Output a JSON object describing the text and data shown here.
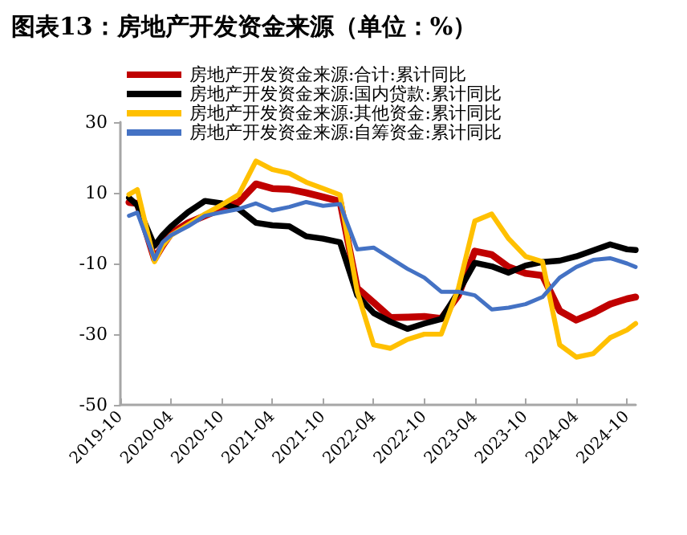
{
  "chart_data": {
    "type": "line",
    "title": "图表13：房地产开发资金来源（单位：%）",
    "x": [
      "2019-11",
      "2019-12",
      "2020-02",
      "2020-03",
      "2020-04",
      "2020-06",
      "2020-08",
      "2020-10",
      "2020-12",
      "2021-02",
      "2021-04",
      "2021-06",
      "2021-08",
      "2021-10",
      "2021-12",
      "2022-02",
      "2022-04",
      "2022-06",
      "2022-08",
      "2022-10",
      "2022-12",
      "2023-02",
      "2023-04",
      "2023-06",
      "2023-08",
      "2023-10",
      "2023-12",
      "2024-02",
      "2024-04",
      "2024-06",
      "2024-08",
      "2024-10",
      "2024-11"
    ],
    "series": [
      {
        "name": "房地产开发资金来源:合计:累计同比",
        "color": "#c00000",
        "values": [
          7.3,
          7.0,
          -8.8,
          -5,
          -1.5,
          1.5,
          3.5,
          5.5,
          7.4,
          12.5,
          11.2,
          11,
          10,
          8.8,
          7.6,
          -17,
          -21,
          -25.3,
          -25.2,
          -25,
          -25.6,
          -19,
          -6.5,
          -7.5,
          -11,
          -12.8,
          -13.4,
          -23.4,
          -26,
          -24,
          -21.5,
          -20,
          -19.5
        ]
      },
      {
        "name": "房地产开发资金来源:国内贷款:累计同比",
        "color": "#000000",
        "values": [
          8.6,
          6.5,
          -5,
          -2,
          0.5,
          4.5,
          7.7,
          7,
          5.4,
          1.5,
          0.8,
          0.5,
          -2.3,
          -3,
          -4,
          -19,
          -24,
          -26.5,
          -28.5,
          -27,
          -25.7,
          -18,
          -9.8,
          -10.8,
          -12.6,
          -10.6,
          -9.6,
          -9.2,
          -8,
          -6.3,
          -4.6,
          -6,
          -6.2
        ]
      },
      {
        "name": "房地产开发资金来源:其他资金:累计同比",
        "color": "#ffc000",
        "values": [
          9.5,
          10.9,
          -9.5,
          -5,
          -2,
          1,
          4,
          6.6,
          9.5,
          19,
          16.6,
          15.5,
          13,
          11.2,
          9.4,
          -18,
          -33,
          -34,
          -31.5,
          -30,
          -30,
          -17,
          2,
          4,
          -3,
          -8,
          -9.5,
          -33,
          -36.5,
          -35.5,
          -31,
          -28.8,
          -27
        ]
      },
      {
        "name": "房地产开发资金来源:自筹资金:累计同比",
        "color": "#4472c4",
        "values": [
          3.5,
          4.4,
          -8.8,
          -4,
          -2,
          0.5,
          3.5,
          4.5,
          5.4,
          7,
          5,
          6,
          7.4,
          6.3,
          6.8,
          -6,
          -5.5,
          -8.5,
          -11.5,
          -14,
          -18,
          -18,
          -19,
          -23,
          -22.5,
          -21.5,
          -19.5,
          -14,
          -11,
          -9,
          -8.5,
          -10,
          -11
        ]
      }
    ],
    "xlim": [
      "2019-10",
      "2024-11"
    ],
    "xticks": [
      "2019-10",
      "2020-04",
      "2020-10",
      "2021-04",
      "2021-10",
      "2022-04",
      "2022-10",
      "2023-04",
      "2023-10",
      "2024-04",
      "2024-10"
    ],
    "ylim": [
      -50,
      30
    ],
    "yticks": [
      -50,
      -30,
      -10,
      10,
      30
    ],
    "grid": false,
    "legend": "top",
    "marker": "none",
    "line_style": "solid"
  }
}
